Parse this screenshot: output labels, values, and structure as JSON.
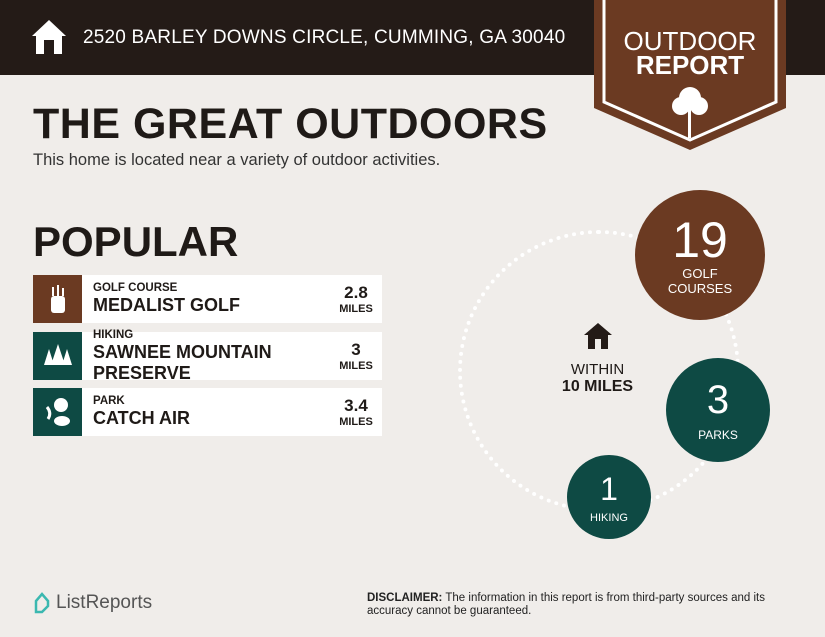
{
  "header": {
    "address": "2520 BARLEY DOWNS CIRCLE, CUMMING, GA 30040",
    "home_icon": "home-icon"
  },
  "badge": {
    "line1": "OUTDOOR",
    "line2": "REPORT",
    "icon": "tree-icon"
  },
  "main": {
    "title": "THE GREAT OUTDOORS",
    "subtitle": "This home is located near a variety of outdoor activities.",
    "popular_heading": "POPULAR"
  },
  "popular": [
    {
      "category": "GOLF COURSE",
      "name": "MEDALIST GOLF",
      "distance": "2.8",
      "unit": "MILES",
      "icon": "golf-bag-icon",
      "color": "#6b3a22"
    },
    {
      "category": "HIKING",
      "name": "SAWNEE MOUNTAIN PRESERVE",
      "distance": "3",
      "unit": "MILES",
      "icon": "trees-icon",
      "color": "#0e4a44"
    },
    {
      "category": "PARK",
      "name": "CATCH AIR",
      "distance": "3.4",
      "unit": "MILES",
      "icon": "park-icon",
      "color": "#0e4a44"
    }
  ],
  "radius": {
    "line1": "WITHIN",
    "line2": "10 MILES"
  },
  "counts": [
    {
      "value": "19",
      "label1": "GOLF",
      "label2": "COURSES",
      "color": "#6b3a22"
    },
    {
      "value": "3",
      "label1": "PARKS",
      "label2": "",
      "color": "#0e4a44"
    },
    {
      "value": "1",
      "label1": "HIKING",
      "label2": "",
      "color": "#0e4a44"
    }
  ],
  "footer": {
    "logo": "ListReports",
    "disclaimer_label": "DISCLAIMER:",
    "disclaimer_text": " The information in this report is from third-party sources and its accuracy cannot be guaranteed."
  }
}
